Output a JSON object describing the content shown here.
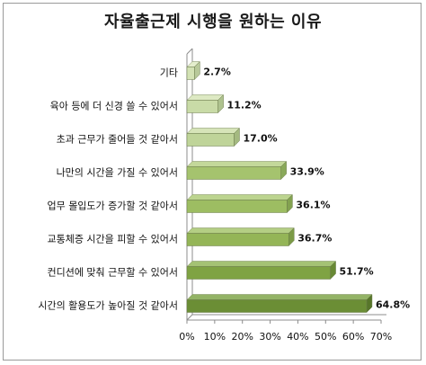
{
  "chart_data": {
    "type": "bar",
    "orientation": "horizontal",
    "style": "3d-bar",
    "title": "자율출근제 시행을 원하는 이유",
    "categories": [
      "기타",
      "육아 등에 더 신경 쓸 수 있어서",
      "초과 근무가 줄어들 것 같아서",
      "나만의 시간을 가질 수 있어서",
      "업무 몰입도가 증가할 것 같아서",
      "교통체증 시간을 피할 수 있어서",
      "컨디션에 맞춰 근무할 수 있어서",
      "시간의 활용도가 높아질 것 같아서"
    ],
    "values": [
      2.7,
      11.2,
      17.0,
      33.9,
      36.1,
      36.7,
      51.7,
      64.8
    ],
    "value_labels": [
      "2.7%",
      "11.2%",
      "17.0%",
      "33.9%",
      "36.1%",
      "36.7%",
      "51.7%",
      "64.8%"
    ],
    "xlim": [
      0,
      70
    ],
    "ticks": [
      "0%",
      "10%",
      "20%",
      "30%",
      "40%",
      "50%",
      "60%",
      "70%"
    ],
    "tick_values": [
      0,
      10,
      20,
      30,
      40,
      50,
      60,
      70
    ],
    "grid": false,
    "legend": "none",
    "colors": {
      "bar_front": [
        "#d3e2b4",
        "#c9dba7",
        "#bfd499",
        "#a5c36e",
        "#9dbd62",
        "#94b557",
        "#7fa343",
        "#6b8e35"
      ],
      "bar_top": [
        "#e4eecd",
        "#dde9c3",
        "#d6e4b8",
        "#c3d89a",
        "#bcd48f",
        "#b4ce84",
        "#a4c274",
        "#93b366"
      ],
      "bar_end": [
        "#b8c99a",
        "#aec28e",
        "#a4b980",
        "#8aa95a",
        "#83a250",
        "#7b9a46",
        "#688935",
        "#57762a"
      ],
      "axis": "#8c8c8c",
      "wall": "#ffffff"
    }
  }
}
